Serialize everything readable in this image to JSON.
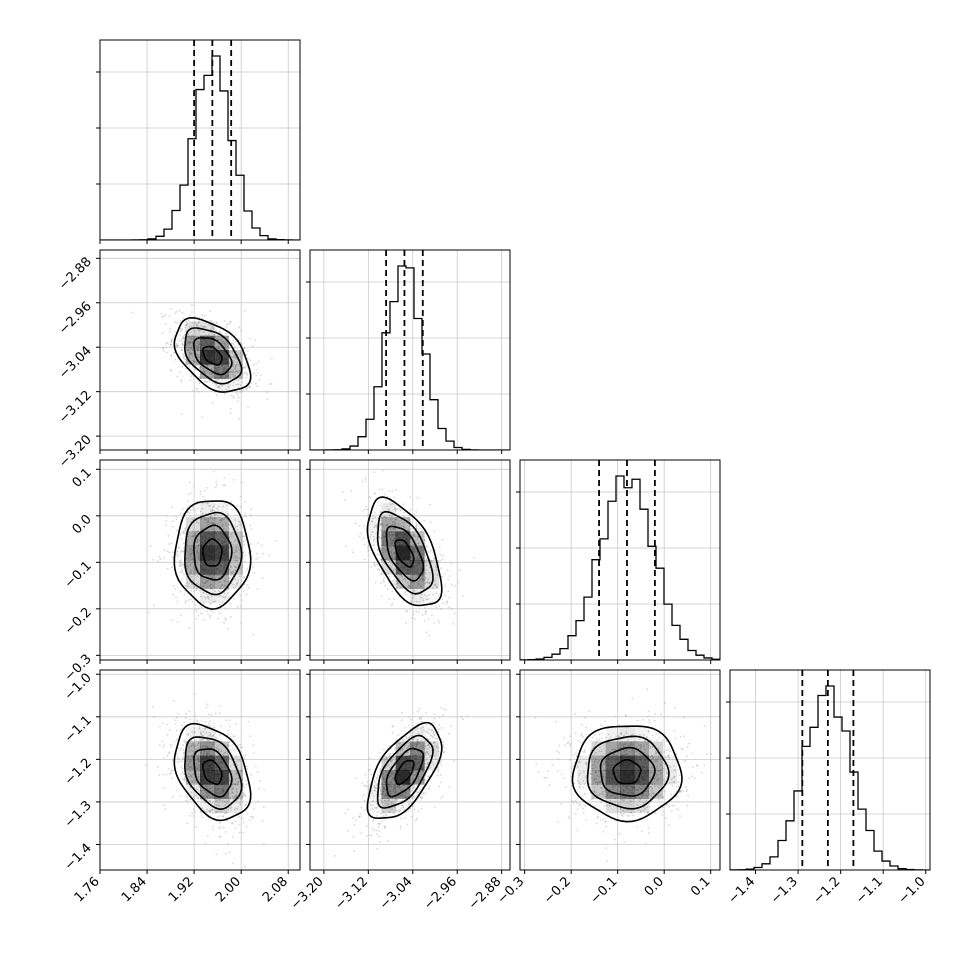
{
  "chart_data": {
    "type": "corner",
    "parameters": [
      {
        "range": [
          1.76,
          2.1
        ],
        "ticks": [
          "1.76",
          "1.84",
          "1.92",
          "2.00",
          "2.08"
        ],
        "tick_values": [
          1.76,
          1.84,
          1.92,
          2.0,
          2.08
        ],
        "quantiles": [
          1.92,
          1.951,
          1.983
        ],
        "mean": 1.951,
        "sd": 0.032
      },
      {
        "range": [
          -3.225,
          -2.865
        ],
        "ticks": [
          "−3.20",
          "−3.12",
          "−3.04",
          "−2.96",
          "−2.88"
        ],
        "tick_values": [
          -3.2,
          -3.12,
          -3.04,
          -2.96,
          -2.88
        ],
        "quantiles": [
          -3.088,
          -3.055,
          -3.022
        ],
        "mean": -3.055,
        "sd": 0.033
      },
      {
        "range": [
          -0.31,
          0.12
        ],
        "ticks": [
          "−0.3",
          "−0.2",
          "−0.1",
          "0.0",
          "0.1"
        ],
        "tick_values": [
          -0.3,
          -0.2,
          -0.1,
          0.0,
          0.1
        ],
        "quantiles": [
          -0.14,
          -0.08,
          -0.02
        ],
        "mean": -0.08,
        "sd": 0.058
      },
      {
        "range": [
          -1.46,
          -0.99
        ],
        "ticks": [
          "−1.4",
          "−1.3",
          "−1.2",
          "−1.1",
          "−1.0"
        ],
        "tick_values": [
          -1.4,
          -1.3,
          -1.2,
          -1.1,
          -1.0
        ],
        "quantiles": [
          -1.29,
          -1.23,
          -1.17
        ],
        "mean": -1.23,
        "sd": 0.056
      }
    ],
    "correlations": [
      [
        1,
        -0.45,
        0.0,
        -0.35
      ],
      [
        -0.45,
        1,
        -0.55,
        0.6
      ],
      [
        0.0,
        -0.55,
        1,
        0.0
      ],
      [
        -0.35,
        0.6,
        0.0,
        1
      ]
    ],
    "grid": true,
    "colors": {
      "points": "#a9a9a9",
      "density": "#000000",
      "lines": "#000000",
      "grid": "#c8c8c8"
    }
  }
}
